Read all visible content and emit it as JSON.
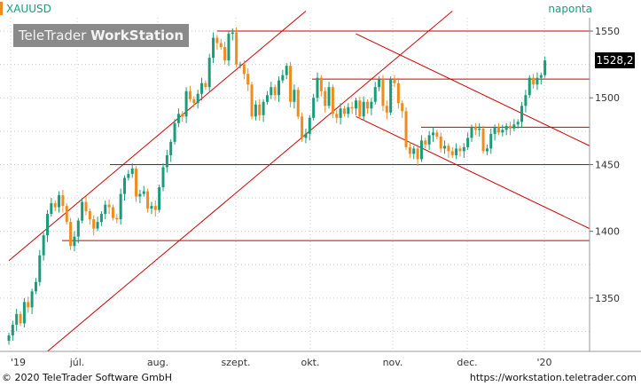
{
  "header": {
    "symbol": "XAUUSD",
    "period": "naponta",
    "brand_light": "TeleTrader ",
    "brand_bold": "WorkStation",
    "last_price": "1528,2"
  },
  "footer": {
    "copyright": "© 2020  TeleTrader Software GmbH",
    "url": "https://workstation.teletrader.com"
  },
  "colors": {
    "up": "#1a9c7a",
    "down": "#f08c1e",
    "line": "#cc0000",
    "grid": "#cccccc",
    "accent": "#1a9c7a"
  },
  "chart_data": {
    "type": "candlestick",
    "ylim": [
      1310,
      1560
    ],
    "y_ticks": [
      1350,
      1400,
      1450,
      1500,
      1550
    ],
    "x_labels": [
      "'19",
      "júl.",
      "aug.",
      "szept.",
      "okt.",
      "nov.",
      "dec.",
      "'20"
    ],
    "closes": [
      1322,
      1330,
      1338,
      1331,
      1347,
      1343,
      1355,
      1362,
      1382,
      1397,
      1413,
      1421,
      1418,
      1427,
      1419,
      1407,
      1389,
      1396,
      1408,
      1422,
      1415,
      1409,
      1402,
      1407,
      1413,
      1420,
      1418,
      1410,
      1409,
      1428,
      1440,
      1443,
      1447,
      1426,
      1428,
      1430,
      1417,
      1419,
      1416,
      1433,
      1448,
      1457,
      1467,
      1481,
      1488,
      1486,
      1505,
      1499,
      1496,
      1503,
      1511,
      1508,
      1530,
      1545,
      1541,
      1538,
      1528,
      1548,
      1549,
      1525,
      1525,
      1518,
      1510,
      1486,
      1495,
      1487,
      1497,
      1502,
      1508,
      1502,
      1513,
      1517,
      1524,
      1497,
      1506,
      1486,
      1470,
      1473,
      1485,
      1500,
      1515,
      1505,
      1494,
      1508,
      1488,
      1485,
      1492,
      1488,
      1493,
      1492,
      1498,
      1486,
      1497,
      1492,
      1497,
      1508,
      1514,
      1494,
      1489,
      1514,
      1511,
      1496,
      1490,
      1463,
      1458,
      1462,
      1454,
      1468,
      1465,
      1472,
      1474,
      1471,
      1462,
      1464,
      1460,
      1457,
      1462,
      1460,
      1463,
      1470,
      1478,
      1476,
      1477,
      1460,
      1462,
      1473,
      1478,
      1474,
      1476,
      1479,
      1477,
      1480,
      1482,
      1494,
      1502,
      1515,
      1510,
      1515,
      1517,
      1528
    ],
    "lines": [
      {
        "kind": "horizontal",
        "value": 1550
      },
      {
        "kind": "horizontal",
        "value": 1514
      },
      {
        "kind": "horizontal",
        "value": 1478
      },
      {
        "kind": "horizontal",
        "value": 1450
      },
      {
        "kind": "horizontal",
        "value": 1393
      },
      {
        "kind": "trend",
        "from": [
          0,
          1378
        ],
        "to": [
          77,
          1565
        ]
      },
      {
        "kind": "trend",
        "from": [
          10,
          1310
        ],
        "to": [
          115,
          1565
        ]
      },
      {
        "kind": "trend",
        "from": [
          90,
          1548
        ],
        "to": [
          218,
          1464
        ]
      },
      {
        "kind": "trend",
        "from": [
          90,
          1486
        ],
        "to": [
          218,
          1402
        ]
      }
    ]
  }
}
